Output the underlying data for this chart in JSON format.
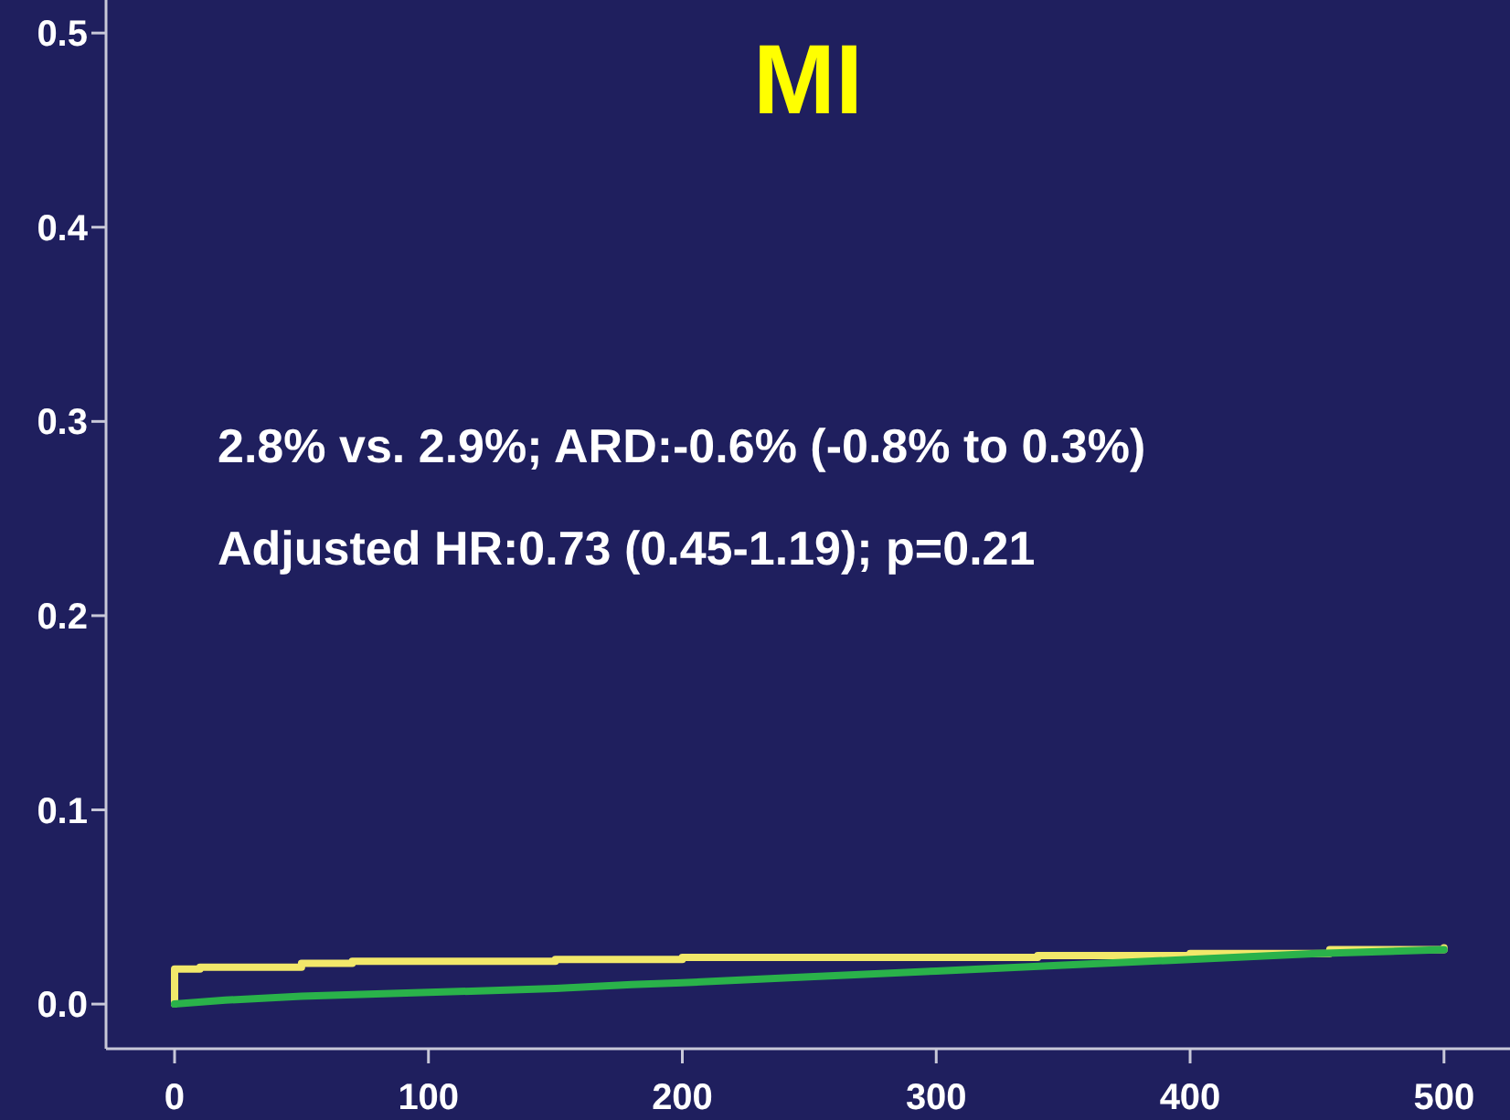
{
  "chart_data": {
    "type": "step",
    "title": "MI",
    "annotations": [
      "2.8% vs. 2.9%; ARD:-0.6% (-0.8% to 0.3%)",
      "Adjusted HR:0.73 (0.45-1.19); p=0.21"
    ],
    "xlim": [
      -27,
      526
    ],
    "ylim": [
      -0.023,
      0.517
    ],
    "xticks": [
      0,
      100,
      200,
      300,
      400,
      500
    ],
    "yticks": [
      {
        "value": 0,
        "label": "0.0"
      },
      0.1,
      0.2,
      0.3,
      0.4,
      0.5
    ],
    "grid": false,
    "series": [
      {
        "color": "#f2e86a",
        "x": [
          0,
          0,
          10,
          50,
          70,
          150,
          200,
          340,
          400,
          455,
          500
        ],
        "values": [
          0,
          0.018,
          0.019,
          0.021,
          0.022,
          0.023,
          0.024,
          0.025,
          0.026,
          0.028,
          0.029
        ]
      },
      {
        "color": "#2ab24a",
        "type": "line",
        "x": [
          0,
          20,
          50,
          100,
          150,
          180,
          200,
          250,
          300,
          350,
          400,
          450,
          500
        ],
        "values": [
          0,
          0.002,
          0.004,
          0.006,
          0.008,
          0.01,
          0.011,
          0.014,
          0.017,
          0.02,
          0.023,
          0.026,
          0.028
        ]
      }
    ]
  }
}
